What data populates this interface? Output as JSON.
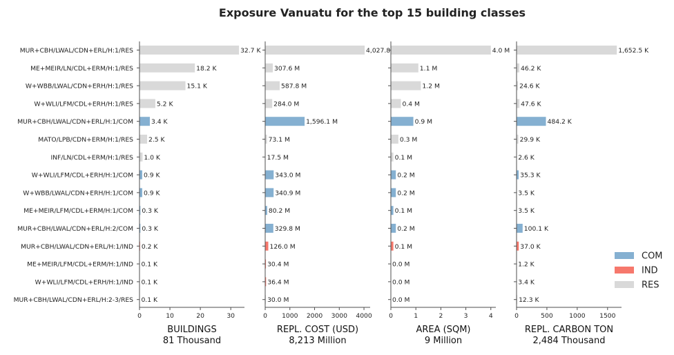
{
  "title": "Exposure Vanuatu for the top 15 building classes",
  "colors": {
    "COM": "#85b0d1",
    "IND": "#f6786c",
    "RES": "#d9d9d9",
    "axis": "#4d4d4d",
    "text": "#222222"
  },
  "legend": {
    "placement": "right",
    "items": [
      {
        "label": "COM",
        "color": "#85b0d1"
      },
      {
        "label": "IND",
        "color": "#f6786c"
      },
      {
        "label": "RES",
        "color": "#d9d9d9"
      }
    ]
  },
  "chart_data": {
    "type": "bar",
    "orientation": "horizontal",
    "categories": [
      "MUR+CBH/LWAL/CDN+ERL/H:1/RES",
      "ME+MEIR/LN/CDL+ERM/H:1/RES",
      "W+WBB/LWAL/CDN+ERH/H:1/RES",
      "W+WLI/LFM/CDL+ERH/H:1/RES",
      "MUR+CBH/LWAL/CDN+ERL/H:1/COM",
      "MATO/LPB/CDN+ERM/H:1/RES",
      "INF/LN/CDL+ERM/H:1/RES",
      "W+WLI/LFM/CDL+ERH/H:1/COM",
      "W+WBB/LWAL/CDN+ERH/H:1/COM",
      "ME+MEIR/LFM/CDL+ERM/H:1/COM",
      "MUR+CBH/LWAL/CDN+ERL/H:2/COM",
      "MUR+CBH/LWAL/CDN+ERL/H:1/IND",
      "ME+MEIR/LFM/CDL+ERM/H:1/IND",
      "W+WLI/LFM/CDL+ERH/H:1/IND",
      "MUR+CBH/LWAL/CDN+ERL/H:2-3/RES"
    ],
    "occupancy": [
      "RES",
      "RES",
      "RES",
      "RES",
      "COM",
      "RES",
      "RES",
      "COM",
      "COM",
      "COM",
      "COM",
      "IND",
      "IND",
      "IND",
      "RES"
    ],
    "panels": [
      {
        "xlabel": "BUILDINGS",
        "total": "81 Thousand",
        "xlim": [
          0,
          34.5
        ],
        "ticks": [
          0,
          10,
          20,
          30
        ],
        "tick_labels": [
          "0",
          "10",
          "20",
          "30"
        ],
        "values": [
          32.7,
          18.2,
          15.1,
          5.2,
          3.4,
          2.5,
          1.0,
          0.9,
          0.9,
          0.3,
          0.3,
          0.2,
          0.1,
          0.1,
          0.1
        ],
        "labels": [
          "32.7 K",
          "18.2 K",
          "15.1 K",
          "5.2 K",
          "3.4 K",
          "2.5 K",
          "1.0 K",
          "0.9 K",
          "0.9 K",
          "0.3 K",
          "0.3 K",
          "0.2 K",
          "0.1 K",
          "0.1 K",
          "0.1 K"
        ]
      },
      {
        "xlabel": "REPL. COST (USD)",
        "total": "8,213 Million",
        "xlim": [
          0,
          4250
        ],
        "ticks": [
          0,
          1000,
          2000,
          3000,
          4000
        ],
        "tick_labels": [
          "0",
          "1000",
          "2000",
          "3000",
          "4000"
        ],
        "values": [
          4027.8,
          307.6,
          587.8,
          284.0,
          1596.1,
          73.1,
          17.5,
          343.0,
          340.9,
          80.2,
          329.8,
          126.0,
          30.4,
          36.4,
          30.0
        ],
        "labels": [
          "4,027.8",
          "307.6 M",
          "587.8 M",
          "284.0 M",
          "1,596.1 M",
          "73.1 M",
          "17.5 M",
          "343.0 M",
          "340.9 M",
          "80.2 M",
          "329.8 M",
          "126.0 M",
          "30.4 M",
          "36.4 M",
          "30.0 M"
        ]
      },
      {
        "xlabel": "AREA (SQM)",
        "total": "9 Million",
        "xlim": [
          0,
          4.2
        ],
        "ticks": [
          0,
          1,
          2,
          3,
          4
        ],
        "tick_labels": [
          "0",
          "1",
          "2",
          "3",
          "4"
        ],
        "values": [
          4.0,
          1.1,
          1.2,
          0.4,
          0.9,
          0.3,
          0.1,
          0.2,
          0.2,
          0.1,
          0.2,
          0.1,
          0.0,
          0.0,
          0.0
        ],
        "labels": [
          "4.0 M",
          "1.1 M",
          "1.2 M",
          "0.4 M",
          "0.9 M",
          "0.3 M",
          "0.1 M",
          "0.2 M",
          "0.2 M",
          "0.1 M",
          "0.2 M",
          "0.1 M",
          "0.0 M",
          "0.0 M",
          "0.0 M"
        ]
      },
      {
        "xlabel": "REPL. CARBON TON",
        "total": "2,484 Thousand",
        "xlim": [
          0,
          1730
        ],
        "ticks": [
          0,
          500,
          1000,
          1500
        ],
        "tick_labels": [
          "0",
          "500",
          "1000",
          "1500"
        ],
        "values": [
          1652.5,
          46.2,
          24.6,
          47.6,
          484.2,
          29.9,
          2.6,
          35.3,
          3.5,
          3.5,
          100.1,
          37.0,
          1.2,
          3.4,
          12.3
        ],
        "labels": [
          "1,652.5 K",
          "46.2 K",
          "24.6 K",
          "47.6 K",
          "484.2 K",
          "29.9 K",
          "2.6 K",
          "35.3 K",
          "3.5 K",
          "3.5 K",
          "100.1 K",
          "37.0 K",
          "1.2 K",
          "3.4 K",
          "12.3 K"
        ]
      }
    ],
    "grid": false
  }
}
